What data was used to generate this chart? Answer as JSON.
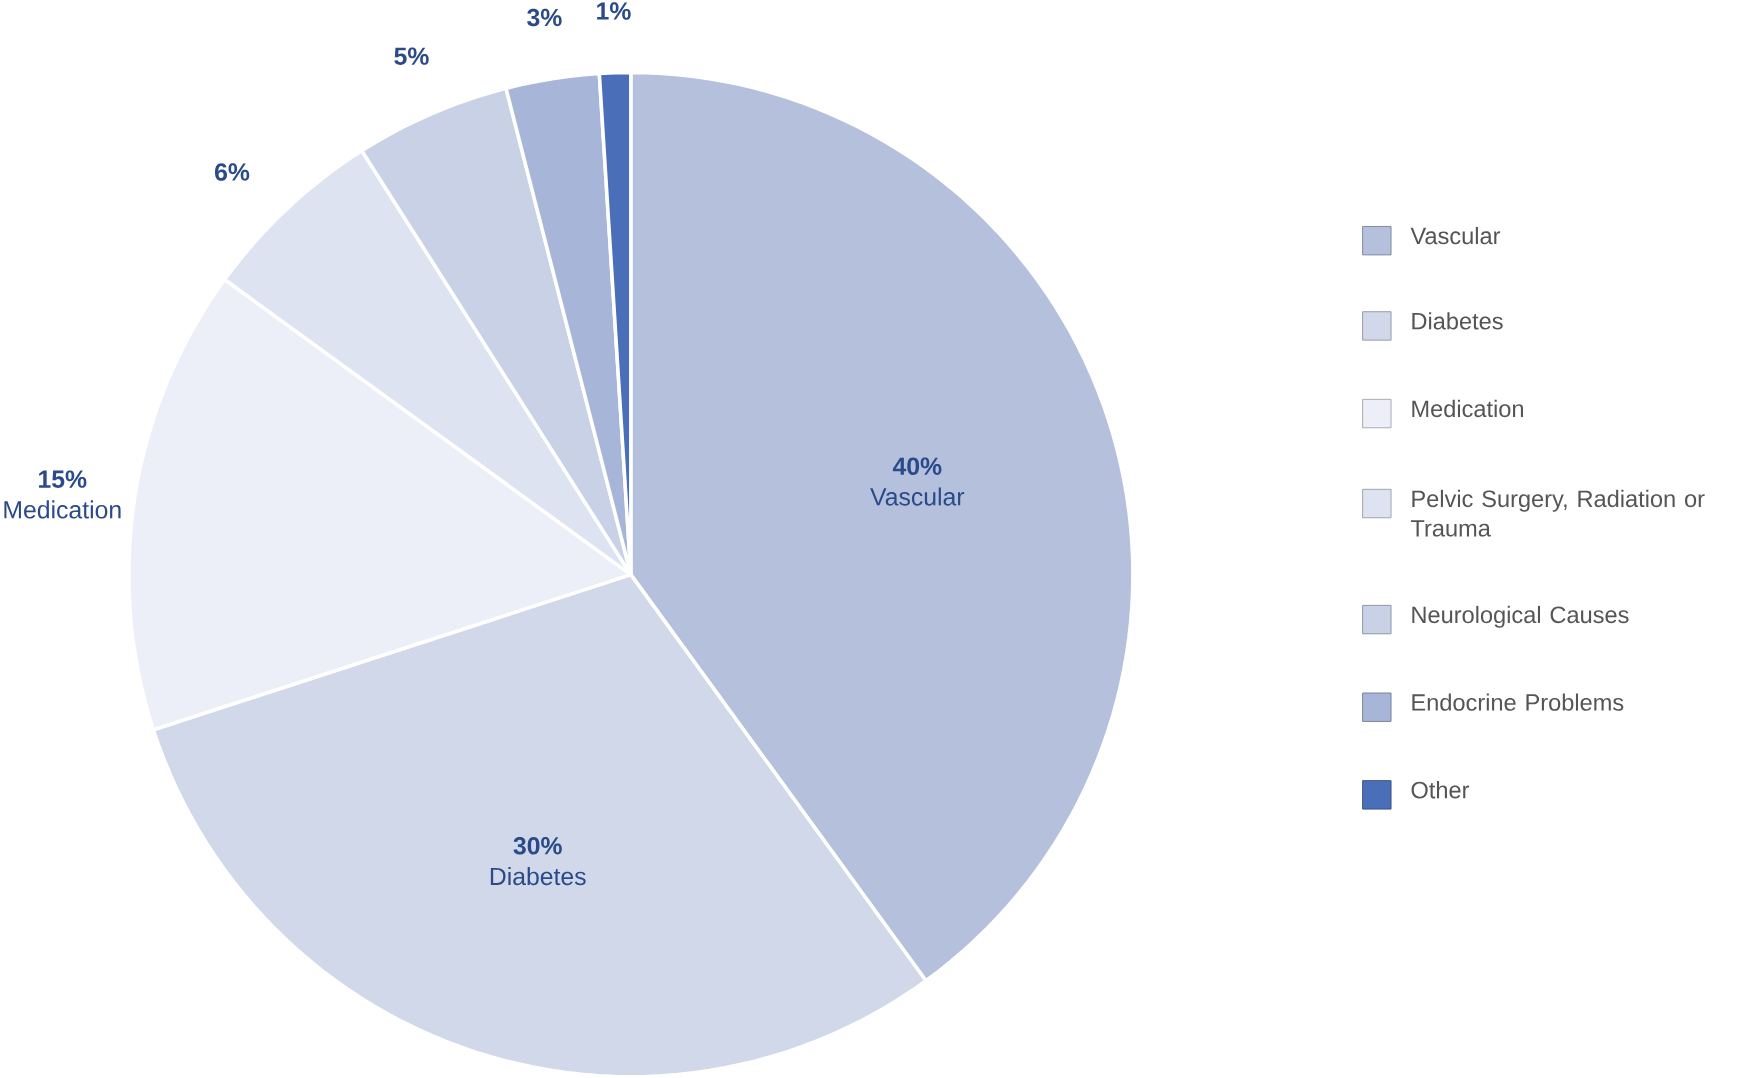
{
  "chart_data": {
    "type": "pie",
    "categories": [
      "Vascular",
      "Diabetes",
      "Medication",
      "Pelvic Surgery, Radiation or Trauma",
      "Neurological Causes",
      "Endocrine Problems",
      "Other"
    ],
    "values": [
      40,
      30,
      15,
      6,
      5,
      3,
      1
    ],
    "colors": [
      "#b4c0dc",
      "#d0d8ea",
      "#eceff8",
      "#dde3f1",
      "#c8d1e6",
      "#a7b6d8",
      "#4a6fb8"
    ],
    "value_labels": [
      "40%",
      "30%",
      "15%",
      "6%",
      "5%",
      "3%",
      "1%"
    ],
    "annotations": [
      {
        "text": "Vascular",
        "x": "Vascular"
      },
      {
        "text": "Diabetes",
        "x": "Diabetes"
      },
      {
        "text": "Medication",
        "x": "Medication"
      }
    ],
    "legend": "right"
  }
}
